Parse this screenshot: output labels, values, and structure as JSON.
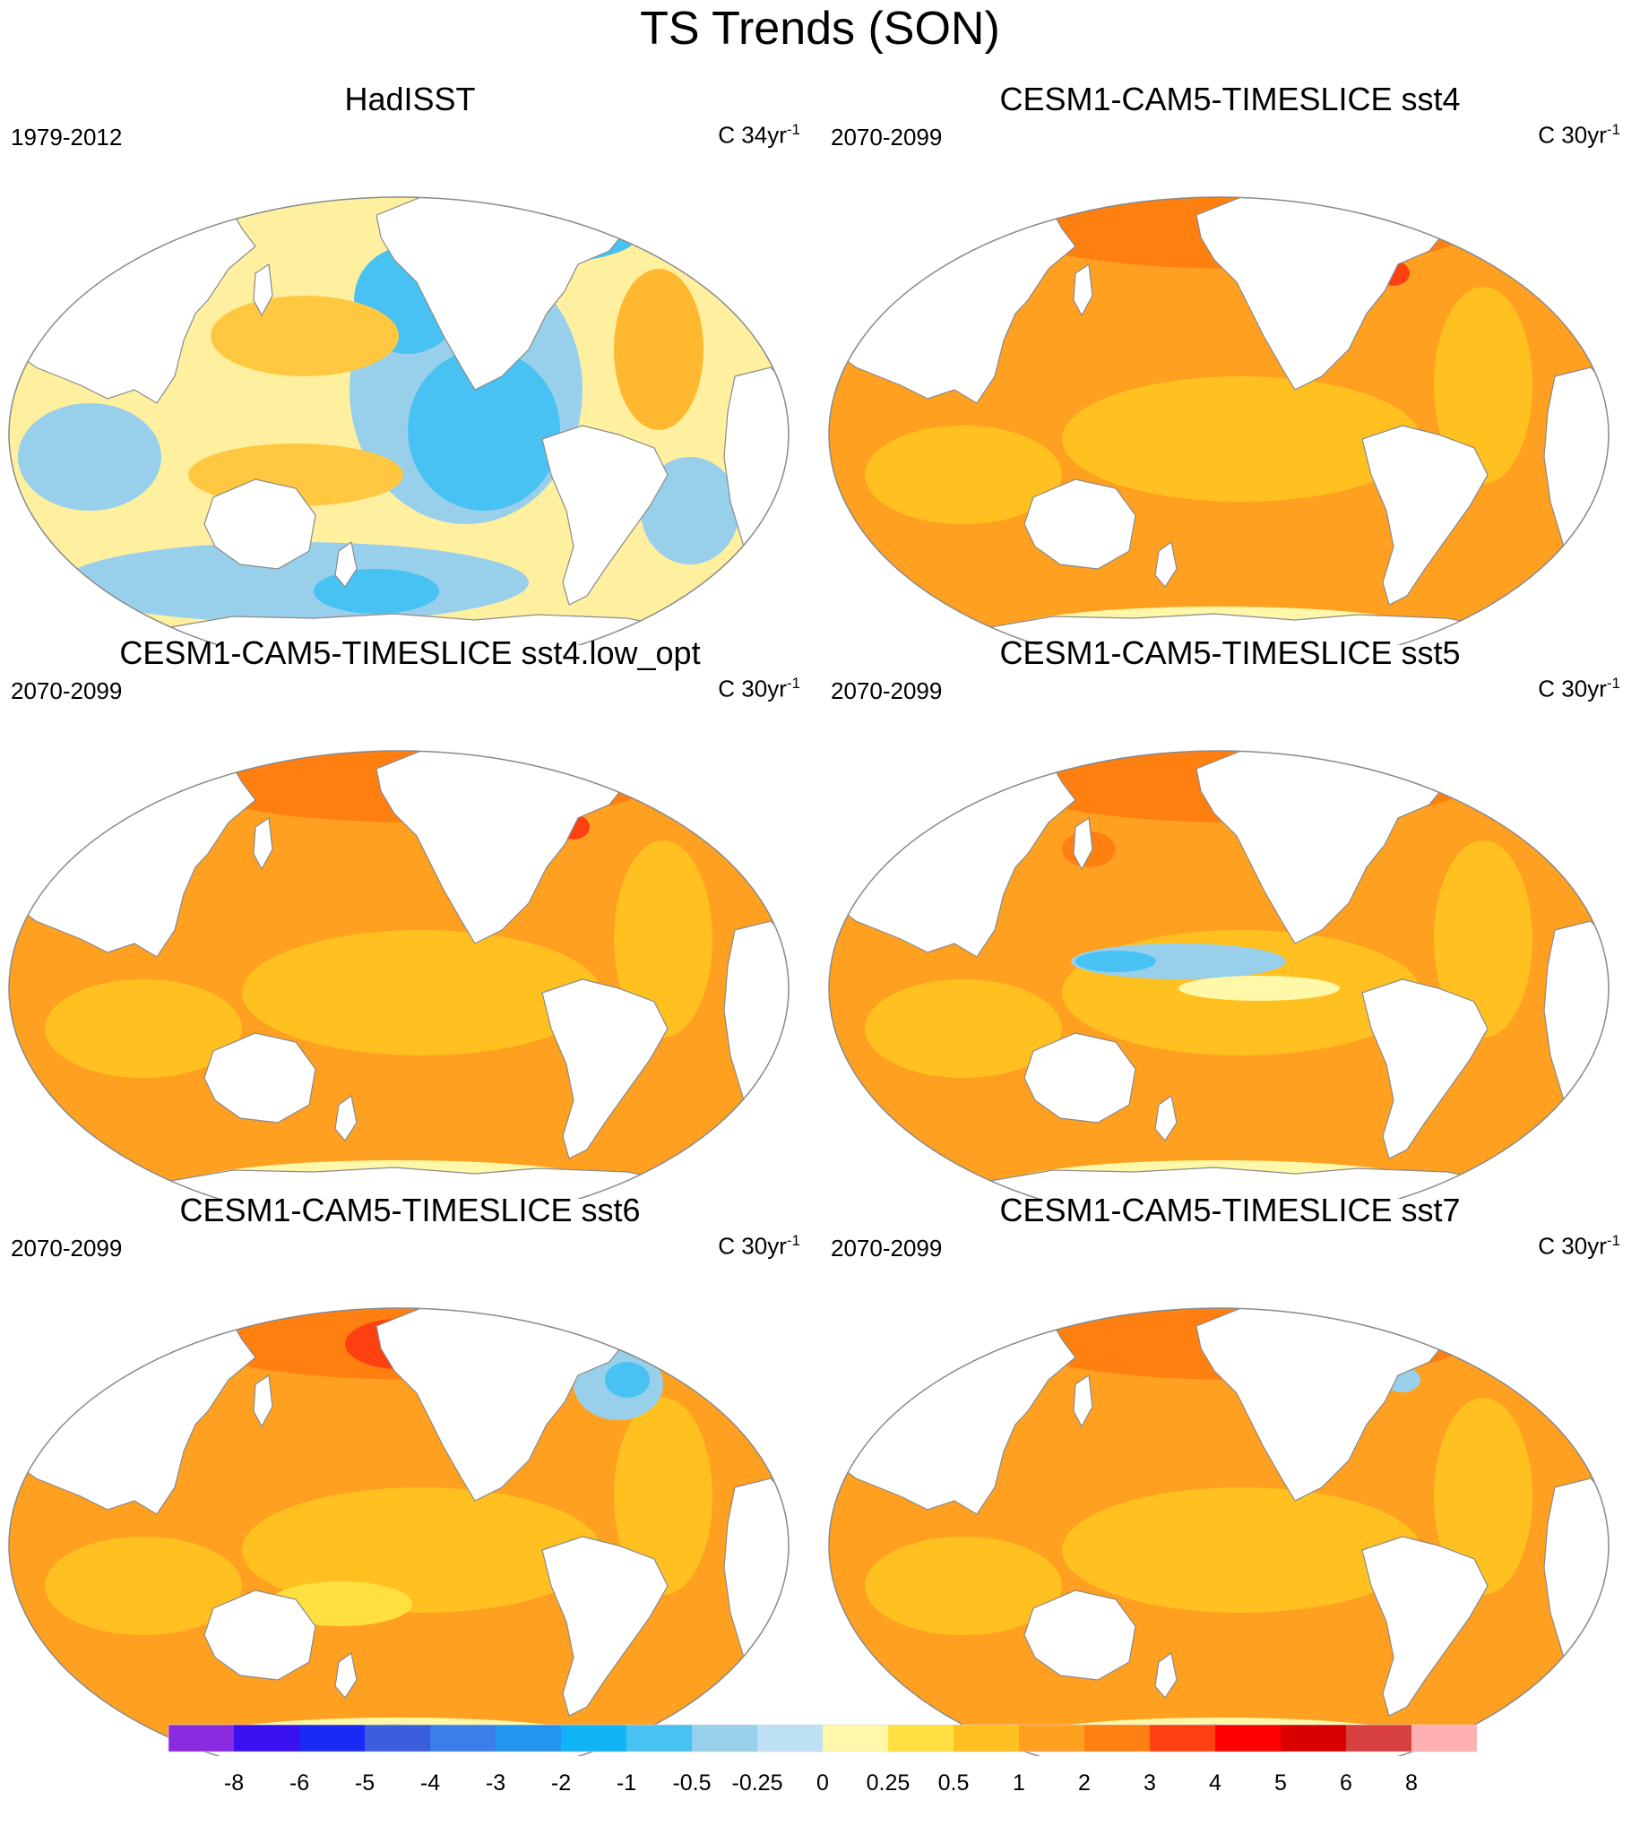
{
  "title": "TS Trends (SON)",
  "panels": [
    {
      "name": "HadISST",
      "period": "1979-2012",
      "units": "C 34yr",
      "units_exp": "-1",
      "scheme": "obs"
    },
    {
      "name": "CESM1-CAM5-TIMESLICE sst4",
      "period": "2070-2099",
      "units": "C 30yr",
      "units_exp": "-1",
      "scheme": "sst4"
    },
    {
      "name": "CESM1-CAM5-TIMESLICE sst4.low_opt",
      "period": "2070-2099",
      "units": "C 30yr",
      "units_exp": "-1",
      "scheme": "low_opt"
    },
    {
      "name": "CESM1-CAM5-TIMESLICE sst5",
      "period": "2070-2099",
      "units": "C 30yr",
      "units_exp": "-1",
      "scheme": "sst5"
    },
    {
      "name": "CESM1-CAM5-TIMESLICE sst6",
      "period": "2070-2099",
      "units": "C 30yr",
      "units_exp": "-1",
      "scheme": "sst6"
    },
    {
      "name": "CESM1-CAM5-TIMESLICE sst7",
      "period": "2070-2099",
      "units": "C 30yr",
      "units_exp": "-1",
      "scheme": "sst7"
    }
  ],
  "colorbar": {
    "labels": [
      "-8",
      "-6",
      "-5",
      "-4",
      "-3",
      "-2",
      "-1",
      "-0.5",
      "-0.25",
      "0",
      "0.25",
      "0.5",
      "1",
      "2",
      "3",
      "4",
      "5",
      "6",
      "8"
    ],
    "colors": [
      "#8a2be2",
      "#3a10f0",
      "#1a2af5",
      "#3a5edc",
      "#3a7ee8",
      "#2494f2",
      "#10b4f6",
      "#48c2f2",
      "#98d0ec",
      "#bee0f4",
      "#fff8a8",
      "#ffe040",
      "#ffc020",
      "#ffa020",
      "#ff8010",
      "#ff4010",
      "#ff0000",
      "#d80000",
      "#d84040",
      "#ffb0b0"
    ]
  },
  "palette": {
    "ocean_warm": "#ffa020",
    "ocean_mid": "#ffc020",
    "ocean_pale": "#fff8a8",
    "ocean_hot": "#ff8010",
    "ocean_cool": "#98d0ec",
    "ocean_cold": "#48c2f2",
    "land": "#ffffff",
    "coast": "#8a8a8a"
  }
}
